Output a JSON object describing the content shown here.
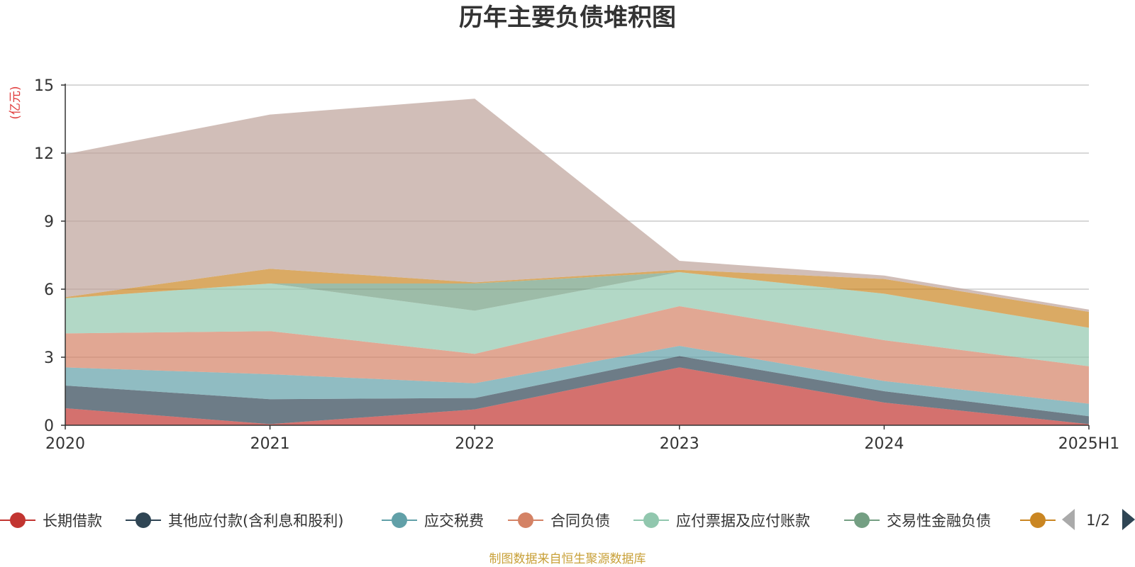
{
  "title": "历年主要负债堆积图",
  "unit_label": "(亿元)",
  "source_note": "制图数据来自恒生聚源数据库",
  "legend_page": "1/2",
  "chart_data": {
    "type": "area",
    "stacked": true,
    "title": "历年主要负债堆积图",
    "ylabel": "(亿元)",
    "categories": [
      "2020",
      "2021",
      "2022",
      "2023",
      "2024",
      "2025H1"
    ],
    "ylim": [
      0,
      15
    ],
    "yticks": [
      0,
      3,
      6,
      9,
      12,
      15
    ],
    "grid": true,
    "legend_position": "bottom",
    "series": [
      {
        "name": "长期借款",
        "color": "#c23531",
        "values": [
          0.75,
          0.05,
          0.7,
          2.55,
          1.0,
          0.05
        ]
      },
      {
        "name": "其他应付款(含利息和股利)",
        "color": "#2f4554",
        "values": [
          1.0,
          1.1,
          0.5,
          0.5,
          0.5,
          0.35
        ]
      },
      {
        "name": "应交税费",
        "color": "#61a0a8",
        "values": [
          0.8,
          1.1,
          0.65,
          0.45,
          0.45,
          0.55
        ]
      },
      {
        "name": "合同负债",
        "color": "#d48265",
        "values": [
          1.5,
          1.9,
          1.3,
          1.75,
          1.8,
          1.65
        ]
      },
      {
        "name": "应付票据及应付账款",
        "color": "#91c7ae",
        "values": [
          1.55,
          2.1,
          1.9,
          1.5,
          2.05,
          1.7
        ]
      },
      {
        "name": "交易性金融负债",
        "color": "#749f83",
        "values": [
          0.0,
          0.0,
          1.2,
          0.0,
          0.0,
          0.0
        ]
      },
      {
        "name": "",
        "color": "#ca8622",
        "values": [
          0.05,
          0.65,
          0.05,
          0.1,
          0.65,
          0.7
        ]
      },
      {
        "name": "",
        "color": "#bda29a",
        "values": [
          6.3,
          6.8,
          8.1,
          0.4,
          0.15,
          0.1
        ]
      }
    ]
  }
}
